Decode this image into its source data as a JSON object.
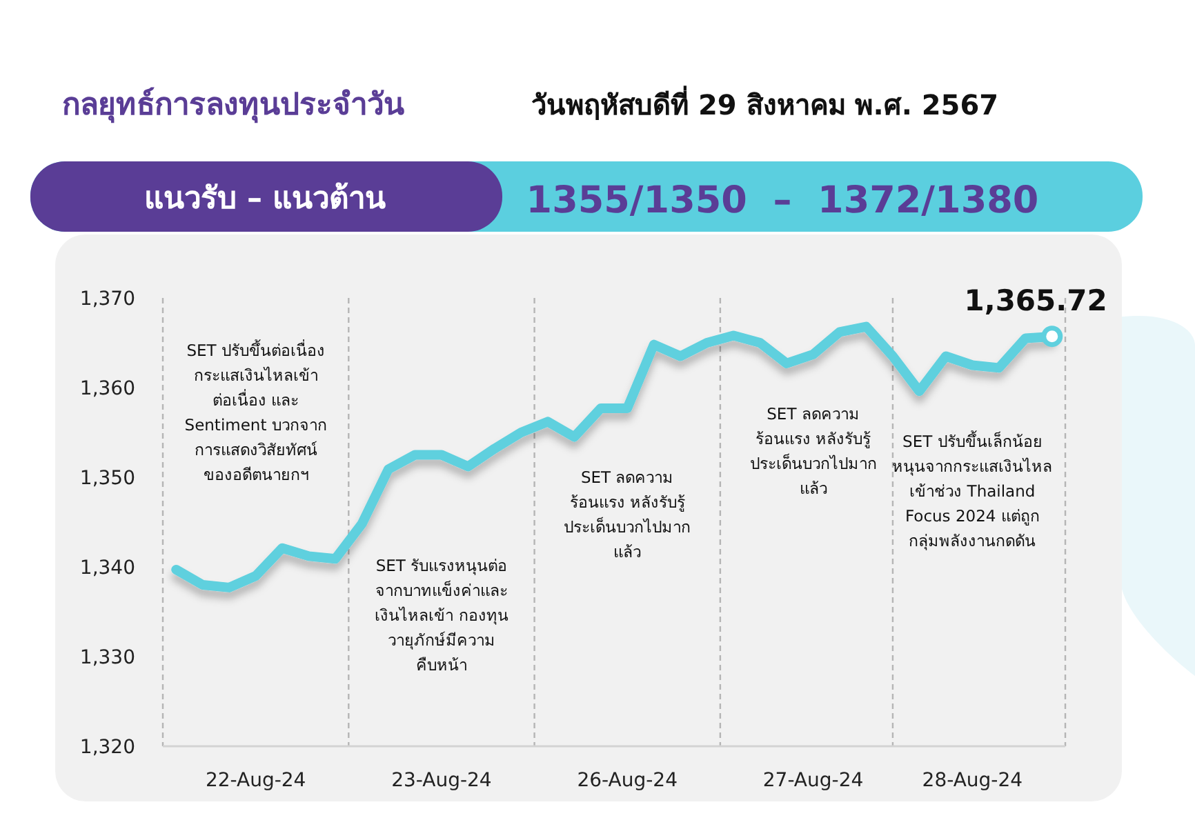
{
  "chart_data": {
    "type": "line",
    "title": "กลยุทธ์การลงทุนประจำวัน",
    "subtitle": "วันพฤหัสบดีที่ 29 สิงหาคม พ.ศ. 2567",
    "categories": [
      null,
      null,
      null,
      "22-Aug-24",
      null,
      null,
      null,
      null,
      null,
      null,
      "23-Aug-24",
      null,
      null,
      null,
      null,
      null,
      null,
      "26-Aug-24",
      null,
      null,
      null,
      null,
      null,
      null,
      "27-Aug-24",
      null,
      null,
      null,
      null,
      null,
      "28-Aug-24",
      null,
      null,
      null
    ],
    "ylim": [
      1320,
      1370
    ],
    "yticks": [
      {
        "value": 1320,
        "label": "1,320"
      },
      {
        "value": 1330,
        "label": "1,330"
      },
      {
        "value": 1340,
        "label": "1,340"
      },
      {
        "value": 1350,
        "label": "1,350"
      },
      {
        "value": 1360,
        "label": "1,360"
      },
      {
        "value": 1370,
        "label": "1,370"
      }
    ],
    "series": [
      {
        "color": "#5fd0de",
        "values": [
          1339.7,
          1338.0,
          1337.7,
          1339.0,
          1342.1,
          1341.2,
          1340.9,
          1344.8,
          1350.9,
          1352.5,
          1352.5,
          1351.2,
          1353.2,
          1355.0,
          1356.2,
          1354.5,
          1357.7,
          1357.7,
          1364.8,
          1363.5,
          1365.0,
          1365.8,
          1365.0,
          1362.7,
          1363.7,
          1366.2,
          1366.8,
          1363.5,
          1359.6,
          1363.5,
          1362.5,
          1362.2,
          1365.5,
          1365.7
        ]
      }
    ],
    "line_style": "solid",
    "marker": "none",
    "annotations": [
      "แนวรับ – แนวต้าน",
      "1355/1350  –  1372/1380",
      "SET ปรับขึ้นต่อเนื่อง\nกระแสเงินไหลเข้า\nต่อเนื่อง และ\nSentiment บวกจาก\nการแสดงวิสัยทัศน์\nของอดีตนายกฯ",
      "SET รับแรงหนุนต่อ\nจากบาทแข็งค่าและ\nเงินไหลเข้า กองทุน\nวายุภักษ์มีความ\nคืบหน้า",
      "SET ลดความ\nร้อนแรง หลังรับรู้\nประเด็นบวกไปมาก\nแล้ว",
      "SET ลดความ\nร้อนแรง หลังรับรู้\nประเด็นบวกไปมาก\nแล้ว",
      "SET ปรับขึ้นเล็กน้อย\nหนุนจากกระแสเงินไหล\nเข้าช่วง Thailand\nFocus 2024 แต่ถูก\nกลุ่มพลังงานกดดัน",
      {
        "text": "1,365.72",
        "y": 1365.72
      }
    ]
  }
}
